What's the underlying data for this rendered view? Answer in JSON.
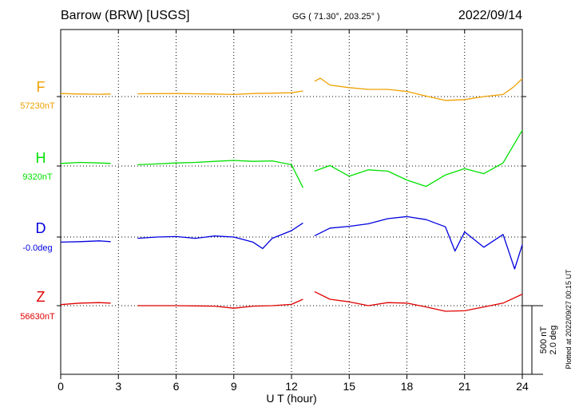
{
  "header": {
    "station": "Barrow (BRW)  [USGS]",
    "coords": "GG ( 71.30°, 203.25° )",
    "date": "2022/09/14"
  },
  "side_note": "Plotted at 2022/09/27 00:15 UT",
  "scale_bar": {
    "line1": "500 nT",
    "line2": "2.0 deg"
  },
  "chart_data": {
    "type": "line",
    "xlabel": "U T (hour)",
    "xlim": [
      0,
      24
    ],
    "xticks": [
      0,
      3,
      6,
      9,
      12,
      15,
      18,
      21,
      24
    ],
    "grid": true,
    "series": [
      {
        "name": "F",
        "baseline_label": "57230nT",
        "color": "#f0a000",
        "points": [
          [
            0,
            0.12
          ],
          [
            1,
            0.1
          ],
          [
            2,
            0.09
          ],
          [
            2.6,
            0.1
          ],
          null,
          [
            4,
            0.11
          ],
          [
            6,
            0.12
          ],
          [
            8,
            0.1
          ],
          [
            9,
            0.08
          ],
          [
            10,
            0.12
          ],
          [
            11,
            0.13
          ],
          [
            12,
            0.15
          ],
          [
            12.6,
            0.22
          ],
          null,
          [
            13.2,
            0.6
          ],
          [
            13.5,
            0.72
          ],
          [
            14,
            0.45
          ],
          [
            15,
            0.35
          ],
          [
            16,
            0.28
          ],
          [
            17,
            0.28
          ],
          [
            18,
            0.2
          ],
          [
            19,
            0.02
          ],
          [
            20,
            -0.15
          ],
          [
            21,
            -0.12
          ],
          [
            22,
            0.0
          ],
          [
            23,
            0.08
          ],
          [
            23.5,
            0.35
          ],
          [
            24,
            0.7
          ]
        ]
      },
      {
        "name": "H",
        "baseline_label": "9320nT",
        "color": "#00e000",
        "points": [
          [
            0,
            0.1
          ],
          [
            1,
            0.14
          ],
          [
            2,
            0.12
          ],
          [
            2.6,
            0.1
          ],
          null,
          [
            4,
            0.05
          ],
          [
            5,
            0.08
          ],
          [
            6,
            0.12
          ],
          [
            7,
            0.14
          ],
          [
            8,
            0.18
          ],
          [
            9,
            0.22
          ],
          [
            10,
            0.18
          ],
          [
            11,
            0.2
          ],
          [
            12,
            0.05
          ],
          [
            12.6,
            -0.85
          ],
          null,
          [
            13.2,
            -0.2
          ],
          [
            14,
            0.02
          ],
          [
            15,
            -0.4
          ],
          [
            16,
            -0.15
          ],
          [
            17,
            -0.2
          ],
          [
            18,
            -0.55
          ],
          [
            19,
            -0.8
          ],
          [
            20,
            -0.35
          ],
          [
            21,
            -0.1
          ],
          [
            22,
            -0.3
          ],
          [
            23,
            0.12
          ],
          [
            24,
            1.4
          ]
        ]
      },
      {
        "name": "D",
        "baseline_label": "-0.0deg",
        "color": "#0000e0",
        "points": [
          [
            0,
            -0.2
          ],
          [
            1,
            -0.18
          ],
          [
            2,
            -0.15
          ],
          [
            2.6,
            -0.18
          ],
          null,
          [
            4,
            -0.05
          ],
          [
            5,
            0.0
          ],
          [
            6,
            0.02
          ],
          [
            7,
            -0.05
          ],
          [
            8,
            0.04
          ],
          [
            9,
            0.0
          ],
          [
            10,
            -0.2
          ],
          [
            10.5,
            -0.45
          ],
          [
            11,
            -0.05
          ],
          [
            12,
            0.25
          ],
          [
            12.6,
            0.55
          ],
          null,
          [
            13.2,
            0.05
          ],
          [
            14,
            0.35
          ],
          [
            15,
            0.42
          ],
          [
            16,
            0.52
          ],
          [
            17,
            0.72
          ],
          [
            18,
            0.8
          ],
          [
            19,
            0.68
          ],
          [
            20,
            0.4
          ],
          [
            20.5,
            -0.55
          ],
          [
            21,
            0.2
          ],
          [
            22,
            -0.4
          ],
          [
            23,
            0.1
          ],
          [
            23.6,
            -1.25
          ],
          [
            24,
            -0.3
          ]
        ]
      },
      {
        "name": "Z",
        "baseline_label": "56630nT",
        "color": "#e00000",
        "points": [
          [
            0,
            0.04
          ],
          [
            1,
            0.1
          ],
          [
            2,
            0.12
          ],
          [
            2.6,
            0.1
          ],
          null,
          [
            4,
            0.0
          ],
          [
            6,
            0.0
          ],
          [
            8,
            -0.02
          ],
          [
            9,
            -0.1
          ],
          [
            10,
            -0.02
          ],
          [
            11,
            0.0
          ],
          [
            12,
            0.05
          ],
          [
            12.6,
            0.25
          ],
          null,
          [
            13.2,
            0.55
          ],
          [
            14,
            0.25
          ],
          [
            15,
            0.15
          ],
          [
            16,
            0.0
          ],
          [
            17,
            0.12
          ],
          [
            18,
            0.1
          ],
          [
            19,
            -0.05
          ],
          [
            20,
            -0.22
          ],
          [
            21,
            -0.2
          ],
          [
            22,
            -0.05
          ],
          [
            23,
            0.1
          ],
          [
            24,
            0.45
          ]
        ]
      }
    ]
  }
}
